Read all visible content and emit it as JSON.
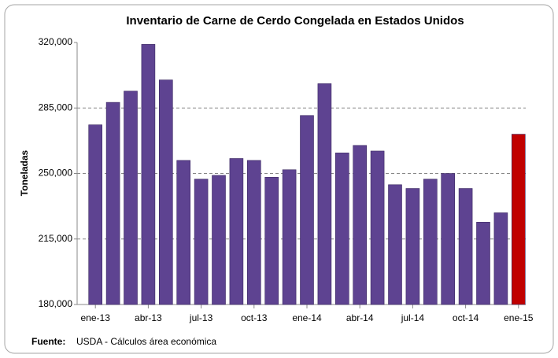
{
  "chart_data": {
    "type": "bar",
    "title": "Inventario de Carne de Cerdo Congelada en Estados Unidos",
    "y_label": "Toneladas",
    "source_label": "Fuente:",
    "source_text": "USDA - Cálculos área económica",
    "categories": [
      "ene-13",
      null,
      null,
      "abr-13",
      null,
      null,
      "jul-13",
      null,
      null,
      "oct-13",
      null,
      null,
      "ene-14",
      null,
      null,
      "abr-14",
      null,
      null,
      "jul-14",
      null,
      null,
      "oct-14",
      null,
      null,
      "ene-15"
    ],
    "values": [
      276000,
      288000,
      294000,
      319000,
      300000,
      257000,
      247000,
      249000,
      258000,
      257000,
      248000,
      252000,
      281000,
      298000,
      261000,
      265000,
      262000,
      244000,
      242000,
      247000,
      250000,
      242000,
      224000,
      229000,
      271000
    ],
    "colors": [
      "#5e4391",
      "#5e4391",
      "#5e4391",
      "#5e4391",
      "#5e4391",
      "#5e4391",
      "#5e4391",
      "#5e4391",
      "#5e4391",
      "#5e4391",
      "#5e4391",
      "#5e4391",
      "#5e4391",
      "#5e4391",
      "#5e4391",
      "#5e4391",
      "#5e4391",
      "#5e4391",
      "#5e4391",
      "#5e4391",
      "#5e4391",
      "#5e4391",
      "#5e4391",
      "#5e4391",
      "#c00000"
    ],
    "ylim": [
      180000,
      320000
    ],
    "yticks": [
      {
        "value": 180000,
        "label": "180,000"
      },
      {
        "value": 215000,
        "label": "215,000"
      },
      {
        "value": 250000,
        "label": "250,000"
      },
      {
        "value": 285000,
        "label": "285,000"
      },
      {
        "value": 320000,
        "label": "320,000"
      }
    ],
    "grid": true
  }
}
